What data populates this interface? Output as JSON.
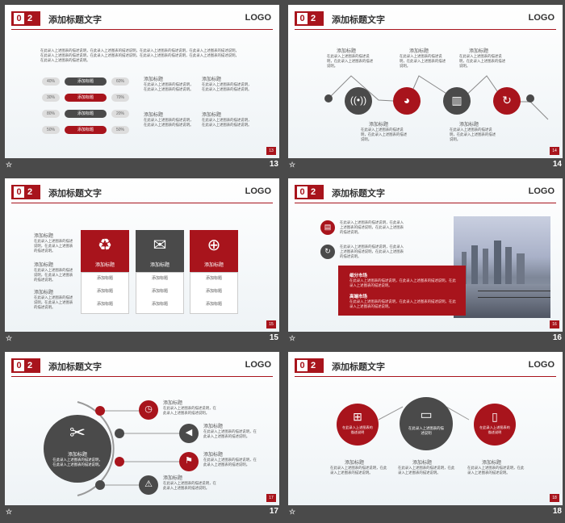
{
  "header": {
    "num_box": "0",
    "num_red": "2",
    "title": "添加标题文字",
    "logo": "LOGO"
  },
  "slides": {
    "s13": {
      "page_badge": "13",
      "footer_num": "13",
      "intro": "在此录入上述图表的描述说明，在此录入上述图表的描述说明，在此录入上述图表的描述说明，在此录入上述图表的描述说明，在此录入上述图表的描述说明，在此录入上述图表的描述说明，在此录入上述图表的描述说明，在此录入上述图表的描述说明，在此录入上述图表的描述说明。",
      "bars": [
        {
          "left": "40%",
          "label": "添加标题",
          "right": "60%",
          "color": "#4a4a4a"
        },
        {
          "left": "30%",
          "label": "添加标题",
          "right": "70%",
          "color": "#a8141c"
        },
        {
          "left": "80%",
          "label": "添加标题",
          "right": "20%",
          "color": "#4a4a4a"
        },
        {
          "left": "50%",
          "label": "添加标题",
          "right": "50%",
          "color": "#a8141c"
        }
      ],
      "blocks": [
        {
          "title": "添加标题",
          "text": "在此录入上述图表的描述说明，在此录入上述图表的描述说明。"
        },
        {
          "title": "添加标题",
          "text": "在此录入上述图表的描述说明，在此录入上述图表的描述说明。"
        },
        {
          "title": "添加标题",
          "text": "在此录入上述图表的描述说明，在此录入上述图表的描述说明。"
        },
        {
          "title": "添加标题",
          "text": "在此录入上述图表的描述说明，在此录入上述图表的描述说明。"
        }
      ]
    },
    "s14": {
      "page_badge": "14",
      "footer_num": "14",
      "items": [
        {
          "title": "添加标题",
          "text": "在此录入上述图表的描述说明，在此录入上述图表的描述说明。"
        },
        {
          "title": "添加标题",
          "text": "在此录入上述图表的描述说明，在此录入上述图表的描述说明。"
        },
        {
          "title": "添加标题",
          "text": "在此录入上述图表的描述说明，在此录入上述图表的描述说明。"
        },
        {
          "title": "添加标题",
          "text": "在此录入上述图表的描述说明，在此录入上述图表的描述说明。"
        },
        {
          "title": "添加标题",
          "text": "在此录入上述图表的描述说明，在此录入上述图表的描述说明。"
        }
      ]
    },
    "s15": {
      "page_badge": "15",
      "footer_num": "15",
      "side": [
        {
          "title": "添加标题",
          "text": "在此录入上述图表的描述说明，在此录入上述图表的描述说明。"
        },
        {
          "title": "添加标题",
          "text": "在此录入上述图表的描述说明，在此录入上述图表的描述说明。"
        },
        {
          "title": "添加标题",
          "text": "在此录入上述图表的描述说明，在此录入上述图表的描述说明。"
        }
      ],
      "cards": [
        {
          "head": "添加标题",
          "rows": [
            "添加标题",
            "添加标题",
            "添加标题"
          ]
        },
        {
          "head": "添加标题",
          "rows": [
            "添加标题",
            "添加标题",
            "添加标题"
          ]
        },
        {
          "head": "添加标题",
          "rows": [
            "添加标题",
            "添加标题",
            "添加标题"
          ]
        }
      ]
    },
    "s16": {
      "page_badge": "16",
      "footer_num": "16",
      "points": [
        "在此录入上述图表的描述说明，在此录入上述图表的描述说明，在此录入上述图表的描述说明。",
        "在此录入上述图表的描述说明，在此录入上述图表的描述说明，在此录入上述图表的描述说明。"
      ],
      "box": [
        {
          "title": "细分市场",
          "text": "在此录入上述图表的描述说明，在此录入上述图表的描述说明，在此录入上述图表的描述说明。"
        },
        {
          "title": "高端市场",
          "text": "在此录入上述图表的描述说明，在此录入上述图表的描述说明，在此录入上述图表的描述说明。"
        }
      ]
    },
    "s17": {
      "page_badge": "17",
      "footer_num": "17",
      "center_title": "添加标题",
      "center_text": "在此录入上述图表的描述说明，在此录入上述图表的描述说明。",
      "items": [
        {
          "title": "添加标题",
          "text": "在此录入上述图表的描述说明，在此录入上述图表的描述说明。"
        },
        {
          "title": "添加标题",
          "text": "在此录入上述图表的描述说明，在此录入上述图表的描述说明。"
        },
        {
          "title": "添加标题",
          "text": "在此录入上述图表的描述说明，在此录入上述图表的描述说明。"
        },
        {
          "title": "添加标题",
          "text": "在此录入上述图表的描述说明，在此录入上述图表的描述说明。"
        }
      ]
    },
    "s18": {
      "page_badge": "18",
      "footer_num": "18",
      "circles": [
        {
          "text": "在此录入上述图表的描述说明",
          "title": "添加标题",
          "desc": "在此录入上述图表的描述说明，在此录入上述图表的描述说明。"
        },
        {
          "text": "在此录入上述图表的描述说明",
          "title": "添加标题",
          "desc": "在此录入上述图表的描述说明，在此录入上述图表的描述说明。"
        },
        {
          "text": "在此录入上述图表的描述说明",
          "title": "添加标题",
          "desc": "在此录入上述图表的描述说明，在此录入上述图表的描述说明。"
        }
      ]
    }
  },
  "colors": {
    "accent": "#a8141c",
    "dark": "#4a4a4a",
    "bg": "#4a4a4a"
  }
}
